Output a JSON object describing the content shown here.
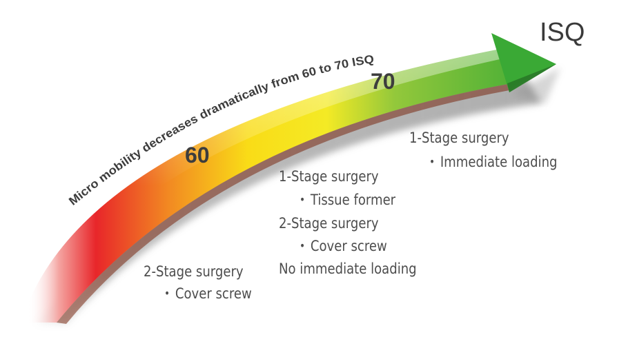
{
  "title": "ISQ",
  "arrow_caption": "Micro mobility decreases dramatically from 60 to 70 ISQ",
  "markers": {
    "m60": "60",
    "m70": "70"
  },
  "groups": {
    "low": {
      "line1": "2-Stage surgery",
      "line2": "Cover screw"
    },
    "mid": {
      "line1": "1-Stage surgery",
      "line2": "Tissue former",
      "line3": "2-Stage surgery",
      "line4": "Cover screw",
      "line5": "No immediate loading"
    },
    "high": {
      "line1": "1-Stage surgery",
      "line2": "Immediate loading"
    }
  },
  "colors": {
    "low": "#e8262a",
    "mid": "#f7e11b",
    "high": "#3aa935",
    "shadow": "#8a8a8a"
  }
}
